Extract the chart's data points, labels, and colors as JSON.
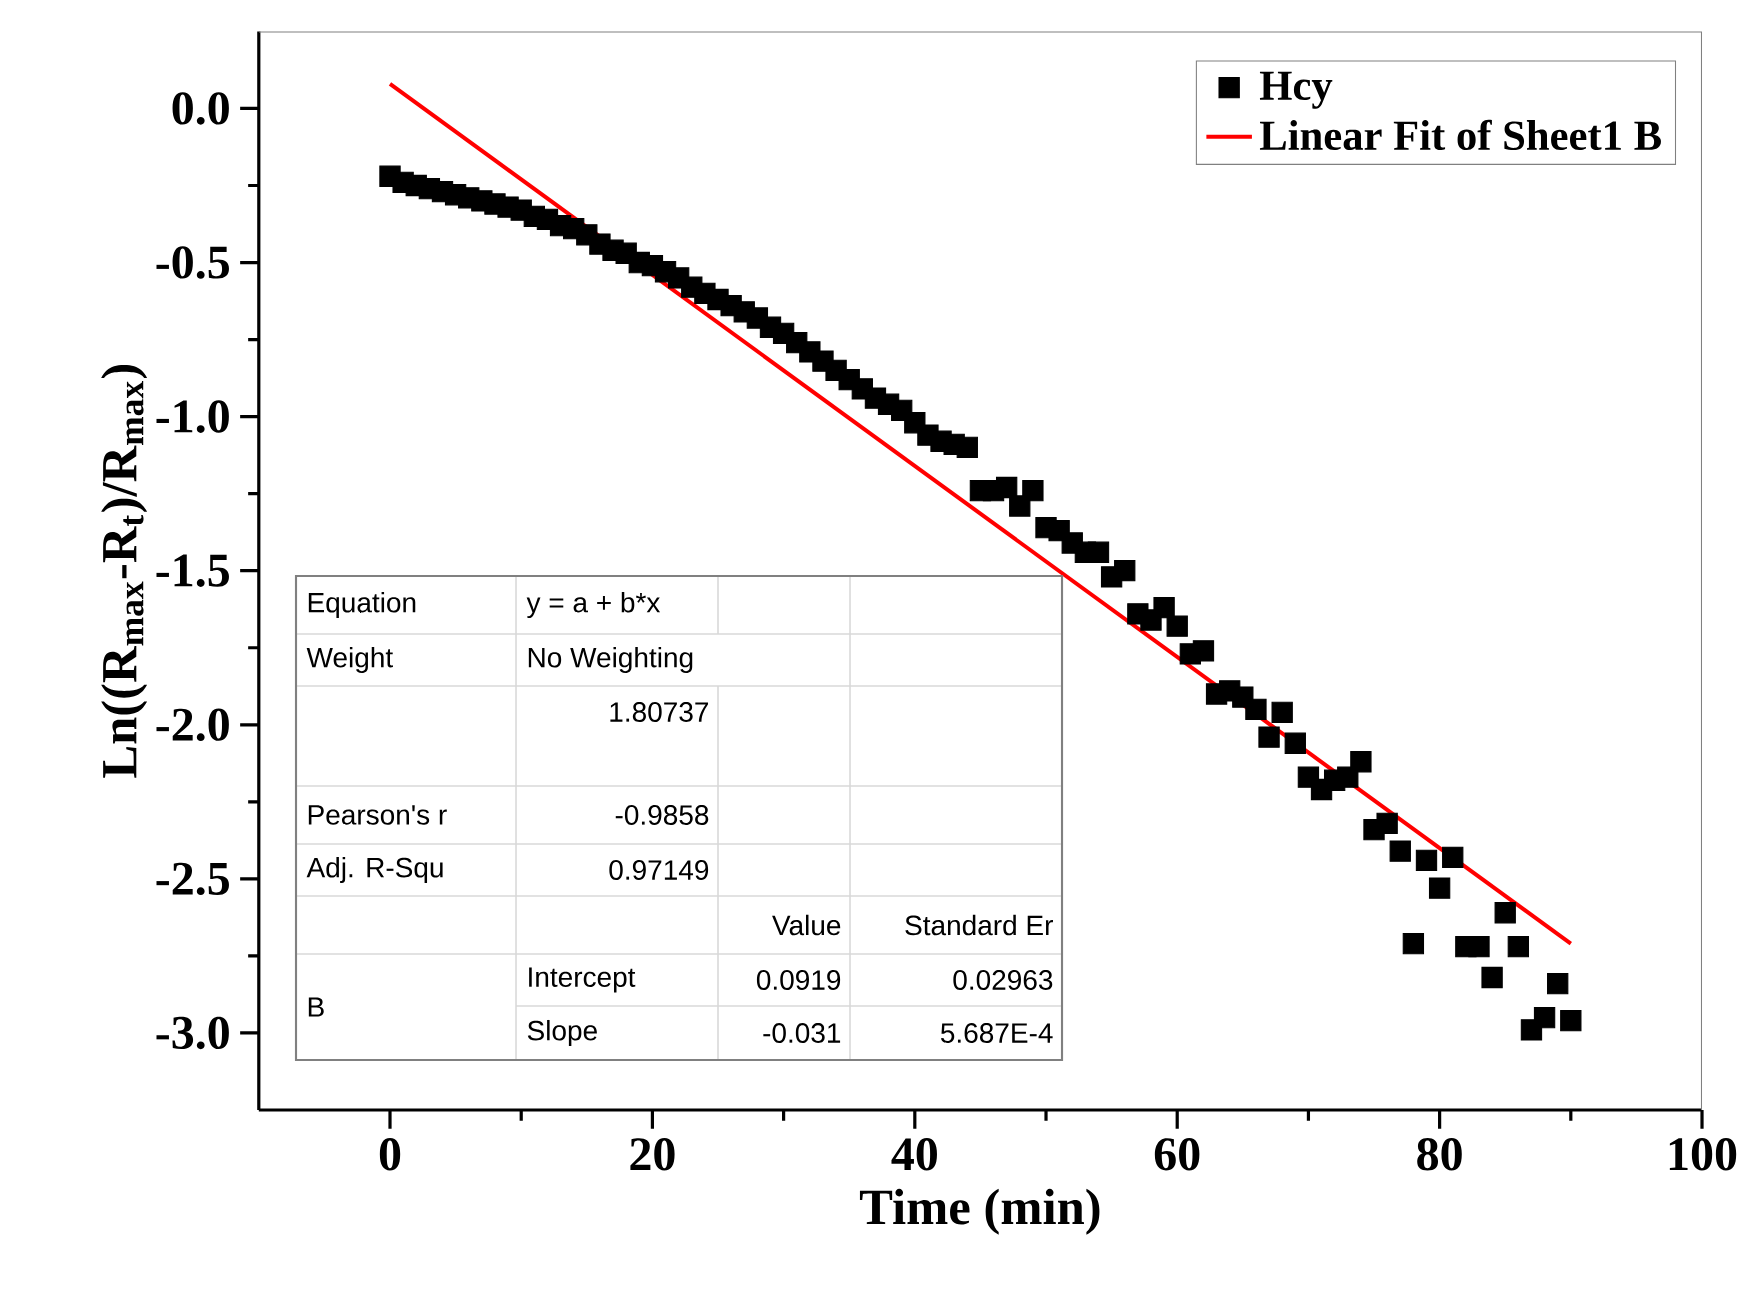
{
  "chart_data": {
    "type": "scatter",
    "xlabel": "Time (min)",
    "ylabel": "Ln((R$_{max}$-R$_{t}$)/R$_{max}$)",
    "xlim": [
      -10,
      100
    ],
    "ylim": [
      -3.25,
      0.25
    ],
    "xticks": [
      0,
      20,
      40,
      60,
      80,
      100
    ],
    "yticks": [
      {
        "value": 0,
        "label": "0.0"
      },
      {
        "value": -0.5,
        "label": "-0.5"
      },
      {
        "value": -1,
        "label": "-1.0"
      },
      {
        "value": -1.5,
        "label": "-1.5"
      },
      {
        "value": -2,
        "label": "-2.0"
      },
      {
        "value": -2.5,
        "label": "-2.5"
      },
      {
        "value": -3,
        "label": "-3.0"
      }
    ],
    "legend": "top right",
    "series": [
      {
        "name": "Hcy",
        "marker": "square",
        "color": "#000000",
        "x": [
          0,
          1,
          2,
          3,
          4,
          5,
          6,
          7,
          8,
          9,
          10,
          11,
          12,
          13,
          14,
          15,
          16,
          17,
          18,
          19,
          20,
          21,
          22,
          23,
          24,
          25,
          26,
          27,
          28,
          29,
          30,
          31,
          32,
          33,
          34,
          35,
          36,
          37,
          38,
          39,
          40,
          41,
          42,
          43,
          44,
          45,
          46,
          47,
          48,
          49,
          50,
          51,
          52,
          53,
          54,
          55,
          56,
          57,
          58,
          59,
          60,
          61,
          62,
          63,
          64,
          65,
          66,
          67,
          68,
          69,
          70,
          71,
          72,
          73,
          74,
          75,
          76,
          77,
          78,
          79,
          80,
          81,
          82,
          83,
          84,
          85,
          86,
          87,
          88,
          89,
          90
        ],
        "values": [
          -0.22,
          -0.24,
          -0.25,
          -0.26,
          -0.27,
          -0.28,
          -0.29,
          -0.3,
          -0.31,
          -0.32,
          -0.33,
          -0.35,
          -0.36,
          -0.38,
          -0.39,
          -0.41,
          -0.44,
          -0.46,
          -0.47,
          -0.5,
          -0.51,
          -0.53,
          -0.55,
          -0.58,
          -0.6,
          -0.62,
          -0.64,
          -0.66,
          -0.68,
          -0.71,
          -0.73,
          -0.76,
          -0.79,
          -0.82,
          -0.85,
          -0.88,
          -0.91,
          -0.94,
          -0.96,
          -0.98,
          -1.02,
          -1.06,
          -1.08,
          -1.09,
          -1.1,
          -1.24,
          -1.24,
          -1.23,
          -1.29,
          -1.24,
          -1.36,
          -1.37,
          -1.41,
          -1.44,
          -1.44,
          -1.52,
          -1.5,
          -1.64,
          -1.66,
          -1.62,
          -1.68,
          -1.77,
          -1.76,
          -1.9,
          -1.89,
          -1.91,
          -1.95,
          -2.04,
          -1.96,
          -2.06,
          -2.17,
          -2.21,
          -2.18,
          -2.17,
          -2.12,
          -2.34,
          -2.32,
          -2.41,
          -2.71,
          -2.44,
          -2.53,
          -2.43,
          -2.72,
          -2.72,
          -2.82,
          -2.61,
          -2.72,
          -2.99,
          -2.95,
          -2.84,
          -2.96
        ]
      },
      {
        "name": "Linear Fit of Sheet1 B",
        "type": "line",
        "color": "#ff0000",
        "x": [
          0,
          90
        ],
        "values": [
          0.08,
          -2.71
        ]
      }
    ],
    "annotations": [
      "Equation",
      "y = a + b*x",
      "Weight",
      "No Weighting",
      "1.80737",
      "Pearson's r",
      "-0.9858",
      "Adj. R-Squ",
      "0.97149",
      "Value",
      "Standard Er",
      "B",
      "Intercept",
      "0.0919",
      "0.02963",
      "Slope",
      "-0.031",
      "5.687E-4"
    ]
  }
}
